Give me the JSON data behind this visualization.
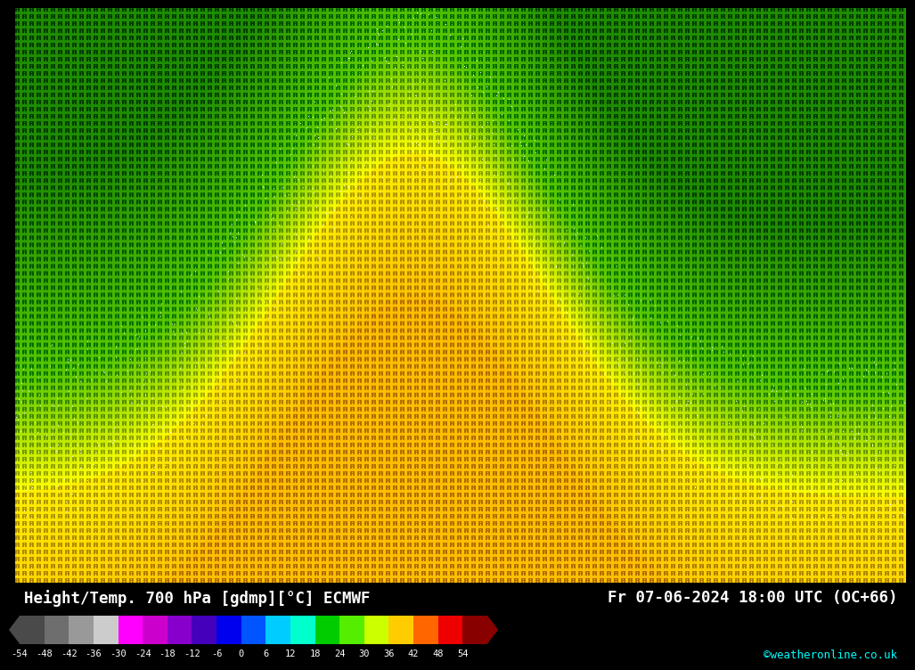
{
  "title_left": "Height/Temp. 700 hPa [gdmp][°C] ECMWF",
  "title_right": "Fr 07-06-2024 18:00 UTC (OC+66)",
  "watermark": "©weatheronline.co.uk",
  "colorbar_values": [
    -54,
    -48,
    -42,
    -36,
    -30,
    -24,
    -18,
    -12,
    -6,
    0,
    6,
    12,
    18,
    24,
    30,
    36,
    42,
    48,
    54
  ],
  "colorbar_colors": [
    "#4a4a4a",
    "#6e6e6e",
    "#999999",
    "#cccccc",
    "#ff00ff",
    "#cc00cc",
    "#8800cc",
    "#4400bb",
    "#0000ee",
    "#0055ff",
    "#00ccff",
    "#00ffcc",
    "#00cc00",
    "#55ee00",
    "#ccff00",
    "#ffcc00",
    "#ff6600",
    "#ee0000",
    "#880000"
  ],
  "background_color": "#000000",
  "green_color": "#55cc00",
  "yellow_color": "#ffee00",
  "gold_color": "#ffcc00",
  "dark_green_color": "#339900",
  "symbol_color_dark": "#000000",
  "symbol_color_light": "#000000"
}
